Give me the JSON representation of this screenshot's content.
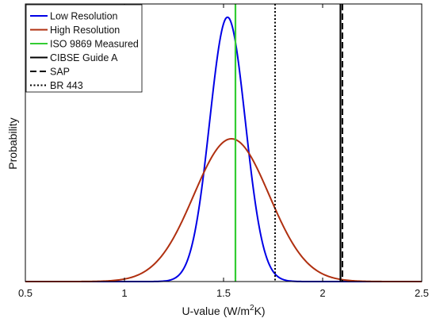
{
  "chart_data": {
    "type": "line",
    "title": "",
    "xlabel": "U-value (W/m2K)",
    "xlabel_parts": {
      "base": "U-value (W/m",
      "sup": "2",
      "tail": "K)"
    },
    "ylabel": "Probability",
    "xlim": [
      0.5,
      2.5
    ],
    "ylim": [
      0,
      1.05
    ],
    "xticks": [
      "0.5",
      "1",
      "1.5",
      "2",
      "2.5"
    ],
    "xtick_values": [
      0.5,
      1,
      1.5,
      2,
      2.5
    ],
    "yticks_shown": false,
    "grid": false,
    "legend_position": "top-left",
    "series": [
      {
        "name": "Low Resolution",
        "kind": "normal-curve",
        "mean": 1.52,
        "sd": 0.09,
        "peak": 1.0,
        "color": "#0000e6",
        "dash": "solid"
      },
      {
        "name": "High Resolution",
        "kind": "normal-curve",
        "mean": 1.54,
        "sd": 0.19,
        "peak": 0.54,
        "color": "#b03010",
        "dash": "solid"
      },
      {
        "name": "ISO 9869 Measured",
        "kind": "vline",
        "x": 1.56,
        "color": "#33cc33",
        "dash": "solid"
      },
      {
        "name": "CIBSE Guide A",
        "kind": "vline",
        "x": 2.09,
        "color": "#000000",
        "dash": "solid"
      },
      {
        "name": "SAP",
        "kind": "vline",
        "x": 2.1,
        "color": "#000000",
        "dash": "dashed"
      },
      {
        "name": "BR 443",
        "kind": "vline",
        "x": 1.76,
        "color": "#000000",
        "dash": "dotted"
      }
    ]
  }
}
